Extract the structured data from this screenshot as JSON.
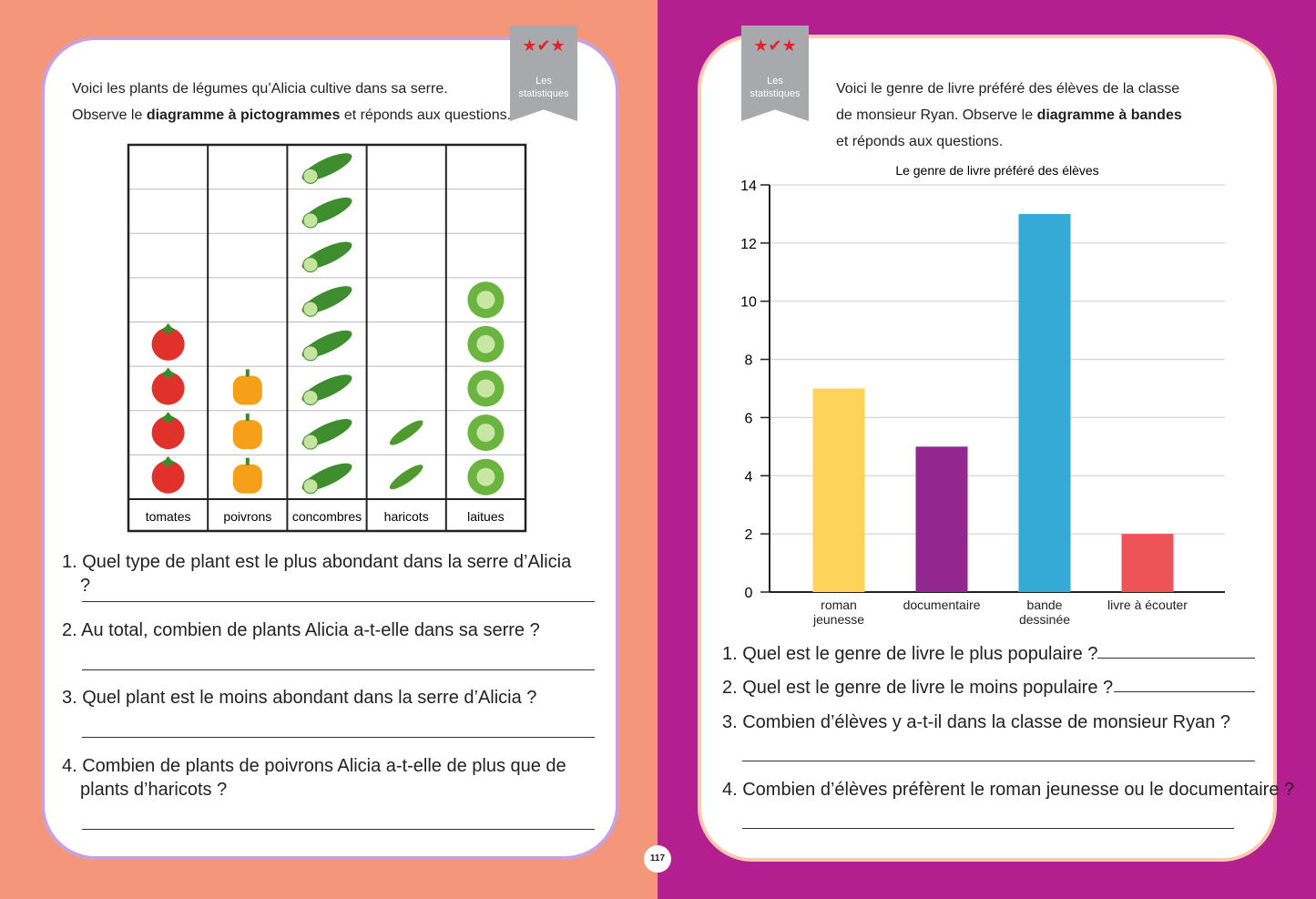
{
  "left": {
    "tab": "Les statistiques",
    "intro_1": "Voici les plants de légumes qu’Alicia cultive dans sa serre.",
    "intro_2": "Observe le",
    "intro_2_bold": "diagramme à pictogrammes",
    "intro_2_end": "et réponds aux questions.",
    "pictogram": {
      "categories": [
        "tomates",
        "poivrons",
        "concombres",
        "haricots",
        "laitues"
      ],
      "counts": [
        4,
        3,
        8,
        2,
        5
      ]
    },
    "questions": [
      "1. Quel type de plant est le plus abondant dans la serre d’Alicia ?",
      "2. Au total, combien de plants Alicia a-t-elle dans sa serre ?",
      "3. Quel plant est le moins abondant dans la serre d’Alicia ?",
      "4. Combien de plants de poivrons Alicia a-t-elle de plus que de plants d’haricots ?"
    ]
  },
  "right": {
    "tab": "Les statistiques",
    "intro_1": "Voici le genre de livre préféré des élèves de la classe",
    "intro_2": "de monsieur Ryan. Observe le",
    "intro_2_bold": "diagramme à bandes",
    "intro_3": "et réponds aux questions.",
    "chart": {
      "type": "bar",
      "title": "Le genre de livre préféré des élèves",
      "categories": [
        "roman\njeunesse",
        "documentaire",
        "bande\ndessinée",
        "livre à écouter"
      ],
      "values": [
        7,
        5,
        13,
        2
      ],
      "colors": [
        "#fdd35a",
        "#92278f",
        "#35aad6",
        "#ee5358"
      ],
      "ylim": [
        0,
        14
      ],
      "yticks": [
        0,
        2,
        4,
        6,
        8,
        10,
        12,
        14
      ],
      "grid": true
    },
    "questions": [
      "1. Quel est le genre de livre le plus populaire ?",
      "2. Quel est le genre de livre le moins populaire ?",
      "3. Combien d’élèves y a-t-il dans la classe de monsieur Ryan ?",
      "4. Combien d’élèves préfèrent le roman jeunesse ou le documentaire ?"
    ]
  },
  "page_number": "117"
}
